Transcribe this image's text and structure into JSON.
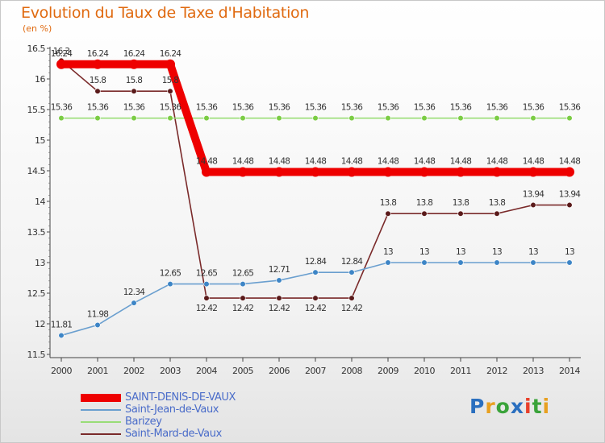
{
  "header": {
    "title": "Evolution du Taux de Taxe d'Habitation",
    "subtitle": "(en %)"
  },
  "logo": {
    "text": "Proxiti",
    "colors": [
      "#2a6fbf",
      "#e8a020",
      "#3aa33a",
      "#2a6fbf",
      "#e8402a",
      "#3aa33a",
      "#e8a020"
    ]
  },
  "chart_data": {
    "type": "line",
    "x": [
      "2000",
      "2001",
      "2002",
      "2003",
      "2004",
      "2005",
      "2006",
      "2007",
      "2008",
      "2009",
      "2010",
      "2011",
      "2012",
      "2013",
      "2014"
    ],
    "ylim": [
      11.5,
      16.5
    ],
    "yticks": [
      "11.5",
      "12",
      "12.5",
      "13",
      "13.5",
      "14",
      "14.5",
      "15",
      "15.5",
      "16",
      "16.5"
    ],
    "grid": false,
    "legend_position": "bottom-left",
    "series": [
      {
        "name": "SAINT-DENIS-DE-VAUX",
        "color": "#ee0000",
        "marker_fill": "#ee0000",
        "thick": true,
        "values": [
          16.24,
          16.24,
          16.24,
          16.24,
          14.48,
          14.48,
          14.48,
          14.48,
          14.48,
          14.48,
          14.48,
          14.48,
          14.48,
          14.48,
          14.48
        ],
        "labels": [
          "16.24",
          "16.24",
          "16.24",
          "16.24",
          "14.48",
          "14.48",
          "14.48",
          "14.48",
          "14.48",
          "14.48",
          "14.48",
          "14.48",
          "14.48",
          "14.48",
          "14.48"
        ]
      },
      {
        "name": "Saint-Jean-de-Vaux",
        "color": "#6a9fcf",
        "marker_fill": "#3d85c6",
        "thick": false,
        "values": [
          11.81,
          11.98,
          12.34,
          12.65,
          12.65,
          12.65,
          12.71,
          12.84,
          12.84,
          13,
          13,
          13,
          13,
          13,
          13
        ],
        "labels": [
          "11.81",
          "11.98",
          "12.34",
          "12.65",
          "12.65",
          "12.65",
          "12.71",
          "12.84",
          "12.84",
          "13",
          "13",
          "13",
          "13",
          "13",
          "13"
        ]
      },
      {
        "name": "Barizey",
        "color": "#99dd77",
        "marker_fill": "#7bcc44",
        "thick": false,
        "values": [
          15.36,
          15.36,
          15.36,
          15.36,
          15.36,
          15.36,
          15.36,
          15.36,
          15.36,
          15.36,
          15.36,
          15.36,
          15.36,
          15.36,
          15.36
        ],
        "labels": [
          "15.36",
          "15.36",
          "15.36",
          "15.36",
          "15.36",
          "15.36",
          "15.36",
          "15.36",
          "15.36",
          "15.36",
          "15.36",
          "15.36",
          "15.36",
          "15.36",
          "15.36"
        ]
      },
      {
        "name": "Saint-Mard-de-Vaux",
        "color": "#7a2a2a",
        "marker_fill": "#5a1a1a",
        "thick": false,
        "values": [
          16.3,
          15.8,
          15.8,
          15.8,
          12.42,
          12.42,
          12.42,
          12.42,
          12.42,
          13.8,
          13.8,
          13.8,
          13.8,
          13.94,
          13.94
        ],
        "labels": [
          "16.3",
          "15.8",
          "15.8",
          "15.8",
          "12.42",
          "12.42",
          "12.42",
          "12.42",
          "12.42",
          "13.8",
          "13.8",
          "13.8",
          "13.8",
          "13.94",
          "13.94"
        ]
      }
    ]
  }
}
